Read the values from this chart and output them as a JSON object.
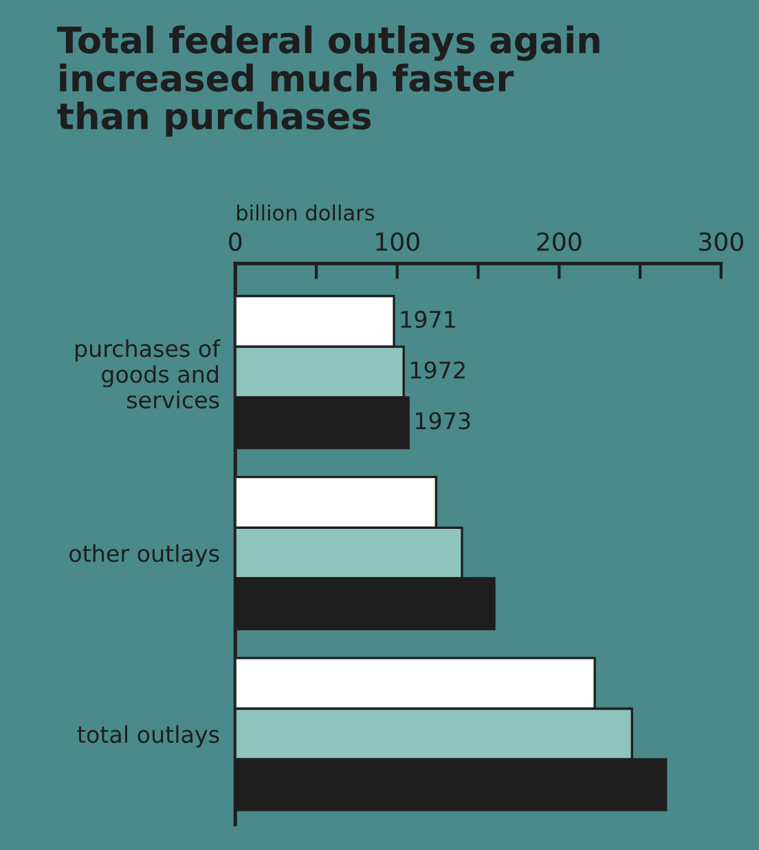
{
  "chart_data": {
    "type": "bar",
    "orientation": "horizontal",
    "title": "Total federal outlays again\nincreased much faster\nthan purchases",
    "xlabel": "billion dollars",
    "categories": [
      "purchases of\ngoods and\nservices",
      "other outlays",
      "total outlays"
    ],
    "series": [
      {
        "name": "1971",
        "color": "#ffffff",
        "values": [
          98,
          124,
          222
        ]
      },
      {
        "name": "1972",
        "color": "#8fc4bd",
        "values": [
          104,
          140,
          245
        ]
      },
      {
        "name": "1973",
        "color": "#1e1e1e",
        "values": [
          107,
          160,
          266
        ]
      }
    ],
    "xlim": [
      0,
      300
    ],
    "xticks": [
      0,
      {
        "value": 50,
        "label": null
      },
      100,
      {
        "value": 150,
        "label": null
      },
      200,
      {
        "value": 250,
        "label": null
      },
      300
    ],
    "grid": false,
    "legend": false
  }
}
